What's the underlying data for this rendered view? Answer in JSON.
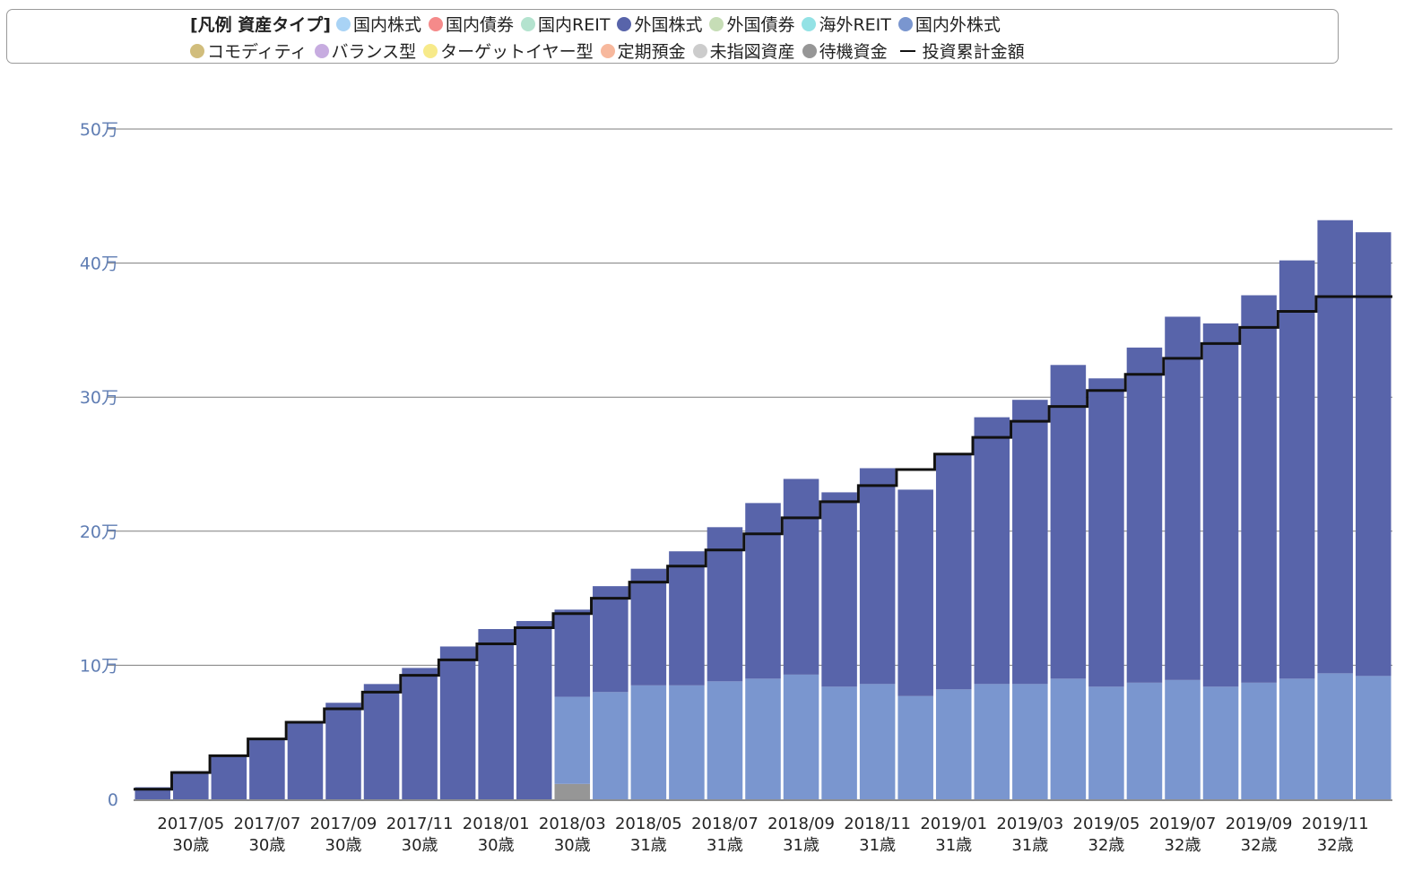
{
  "legend": {
    "title": "[凡例 資産タイプ]",
    "row1": [
      {
        "label": "国内株式",
        "color": "#a9d3f5",
        "icon": "dot"
      },
      {
        "label": "国内債券",
        "color": "#f58a8a",
        "icon": "dot"
      },
      {
        "label": "国内REIT",
        "color": "#b4e3cf",
        "icon": "dot"
      },
      {
        "label": "外国株式",
        "color": "#5864aa",
        "icon": "dot"
      },
      {
        "label": "外国債券",
        "color": "#c6ddb6",
        "icon": "dot"
      },
      {
        "label": "海外REIT",
        "color": "#93e2e5",
        "icon": "dot"
      },
      {
        "label": "国内外株式",
        "color": "#7a96cf",
        "icon": "dot"
      }
    ],
    "row2": [
      {
        "label": "コモディティ",
        "color": "#d1bd7c",
        "icon": "dot"
      },
      {
        "label": "バランス型",
        "color": "#c7ace0",
        "icon": "dot"
      },
      {
        "label": "ターゲットイヤー型",
        "color": "#f7ea8a",
        "icon": "dot"
      },
      {
        "label": "定期預金",
        "color": "#f7b89d",
        "icon": "dot"
      },
      {
        "label": "未指図資産",
        "color": "#cccccc",
        "icon": "dot"
      },
      {
        "label": "待機資金",
        "color": "#969696",
        "icon": "dot"
      },
      {
        "label": "投資累計金額",
        "color": "#111111",
        "icon": "line"
      }
    ]
  },
  "chart_data": {
    "type": "bar",
    "stacked": true,
    "ylim": [
      0,
      500000
    ],
    "y_ticks": [
      {
        "value": 0,
        "label": "0"
      },
      {
        "value": 100000,
        "label": "10万"
      },
      {
        "value": 200000,
        "label": "20万"
      },
      {
        "value": 300000,
        "label": "30万"
      },
      {
        "value": 400000,
        "label": "40万"
      },
      {
        "value": 500000,
        "label": "50万"
      }
    ],
    "grid": true,
    "legend_position": "top",
    "x_tick_labels": [
      {
        "date": "2017/05",
        "age": "30歳"
      },
      {
        "date": "2017/07",
        "age": "30歳"
      },
      {
        "date": "2017/09",
        "age": "30歳"
      },
      {
        "date": "2017/11",
        "age": "30歳"
      },
      {
        "date": "2018/01",
        "age": "30歳"
      },
      {
        "date": "2018/03",
        "age": "30歳"
      },
      {
        "date": "2018/05",
        "age": "31歳"
      },
      {
        "date": "2018/07",
        "age": "31歳"
      },
      {
        "date": "2018/09",
        "age": "31歳"
      },
      {
        "date": "2018/11",
        "age": "31歳"
      },
      {
        "date": "2019/01",
        "age": "31歳"
      },
      {
        "date": "2019/03",
        "age": "31歳"
      },
      {
        "date": "2019/05",
        "age": "32歳"
      },
      {
        "date": "2019/07",
        "age": "32歳"
      },
      {
        "date": "2019/09",
        "age": "32歳"
      },
      {
        "date": "2019/11",
        "age": "32歳"
      }
    ],
    "categories": [
      "2017/04",
      "2017/05",
      "2017/06",
      "2017/07",
      "2017/08",
      "2017/09",
      "2017/10",
      "2017/11",
      "2017/12",
      "2018/01",
      "2018/02",
      "2018/03",
      "2018/04",
      "2018/05",
      "2018/06",
      "2018/07",
      "2018/08",
      "2018/09",
      "2018/10",
      "2018/11",
      "2018/12",
      "2019/01",
      "2019/02",
      "2019/03",
      "2019/04",
      "2019/05",
      "2019/06",
      "2019/07",
      "2019/08",
      "2019/09",
      "2019/10",
      "2019/11",
      "2019/12"
    ],
    "series": [
      {
        "name": "待機資金",
        "color": "#969696",
        "values": [
          0,
          0,
          0,
          0,
          0,
          0,
          0,
          0,
          0,
          0,
          0,
          11500,
          0,
          0,
          0,
          0,
          0,
          0,
          0,
          0,
          0,
          0,
          0,
          0,
          0,
          0,
          0,
          0,
          0,
          0,
          0,
          0,
          0
        ]
      },
      {
        "name": "国内外株式",
        "color": "#7a96cf",
        "values": [
          0,
          0,
          0,
          0,
          0,
          0,
          0,
          0,
          0,
          0,
          0,
          65000,
          80000,
          85000,
          85000,
          88000,
          90000,
          93000,
          84000,
          86000,
          77000,
          82000,
          86000,
          86000,
          90000,
          84000,
          87000,
          89000,
          84000,
          87000,
          90000,
          94000,
          92000
        ]
      },
      {
        "name": "外国株式",
        "color": "#5864aa",
        "values": [
          9000,
          21000,
          33000,
          45000,
          57000,
          72000,
          86000,
          98000,
          114000,
          127000,
          133000,
          65000,
          79000,
          87000,
          100000,
          115000,
          131000,
          146000,
          145000,
          161000,
          154000,
          176000,
          199000,
          212000,
          234000,
          230000,
          250000,
          271000,
          271000,
          289000,
          312000,
          338000,
          331000
        ]
      }
    ],
    "line_series": {
      "name": "投資累計金額",
      "color": "#111111",
      "step": true,
      "values": [
        7500,
        20000,
        32500,
        45000,
        57500,
        67500,
        80000,
        92500,
        104000,
        116000,
        128000,
        138500,
        150000,
        162000,
        174000,
        186000,
        198000,
        210000,
        222000,
        234000,
        246000,
        257500,
        270000,
        282000,
        293000,
        305000,
        317000,
        329000,
        340000,
        352000,
        364000,
        375000,
        375000
      ]
    }
  }
}
